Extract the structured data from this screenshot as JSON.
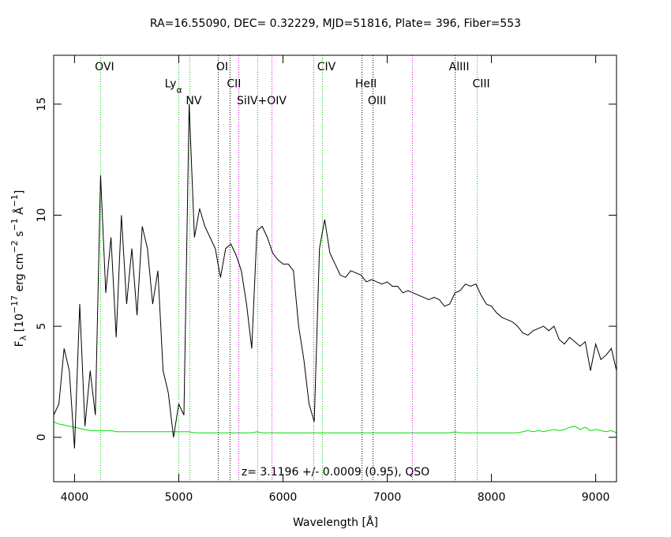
{
  "chart_data": {
    "type": "line",
    "title": "RA=16.55090, DEC= 0.32229, MJD=51816, Plate= 396, Fiber=553",
    "annotation": "z= 3.1196 +/- 0.0009 (0.95), QSO",
    "xlabel": "Wavelength [Å]",
    "ylabel_parts": [
      "F",
      "λ",
      " [10",
      "−17",
      " erg cm",
      "−2",
      " s",
      "−1",
      " Å",
      "−1",
      "]"
    ],
    "xlim": [
      3800,
      9200
    ],
    "ylim": [
      -2,
      17.2
    ],
    "xticks": [
      4000,
      5000,
      6000,
      7000,
      8000,
      9000
    ],
    "yticks": [
      0,
      5,
      10,
      15
    ],
    "x": [
      3800,
      3850,
      3900,
      3950,
      4000,
      4050,
      4100,
      4150,
      4200,
      4250,
      4300,
      4350,
      4400,
      4450,
      4500,
      4550,
      4600,
      4650,
      4700,
      4750,
      4800,
      4850,
      4900,
      4950,
      5000,
      5050,
      5100,
      5150,
      5200,
      5250,
      5300,
      5350,
      5400,
      5450,
      5500,
      5550,
      5600,
      5650,
      5700,
      5750,
      5800,
      5850,
      5900,
      5950,
      6000,
      6050,
      6100,
      6150,
      6200,
      6250,
      6300,
      6350,
      6400,
      6450,
      6500,
      6550,
      6600,
      6650,
      6700,
      6750,
      6800,
      6850,
      6900,
      6950,
      7000,
      7050,
      7100,
      7150,
      7200,
      7250,
      7300,
      7350,
      7400,
      7450,
      7500,
      7550,
      7600,
      7650,
      7700,
      7750,
      7800,
      7850,
      7900,
      7950,
      8000,
      8050,
      8100,
      8150,
      8200,
      8250,
      8300,
      8350,
      8400,
      8450,
      8500,
      8550,
      8600,
      8650,
      8700,
      8750,
      8800,
      8850,
      8900,
      8950,
      9000,
      9050,
      9100,
      9150,
      9200
    ],
    "series": [
      {
        "name": "flux",
        "color": "#000000",
        "values": [
          1.0,
          1.5,
          4,
          3,
          -0.5,
          6,
          0.5,
          3,
          1,
          11.8,
          6.5,
          9,
          4.5,
          10,
          6,
          8.5,
          5.5,
          9.5,
          8.5,
          6,
          7.5,
          3,
          2,
          0,
          1.5,
          1,
          15,
          9,
          10.3,
          9.5,
          9,
          8.5,
          7.2,
          8.5,
          8.7,
          8.2,
          7.5,
          6,
          4,
          9.3,
          9.5,
          9,
          8.3,
          8,
          7.8,
          7.8,
          7.5,
          5,
          3.5,
          1.5,
          0.7,
          8.5,
          9.8,
          8.3,
          7.8,
          7.3,
          7.2,
          7.5,
          7.4,
          7.3,
          7,
          7.1,
          7,
          6.9,
          7,
          6.8,
          6.8,
          6.5,
          6.6,
          6.5,
          6.4,
          6.3,
          6.2,
          6.3,
          6.2,
          5.9,
          6,
          6.5,
          6.6,
          6.9,
          6.8,
          6.9,
          6.4,
          6,
          5.9,
          5.6,
          5.4,
          5.3,
          5.2,
          5,
          4.7,
          4.6,
          4.8,
          4.9,
          5,
          4.8,
          5,
          4.4,
          4.2,
          4.5,
          4.3,
          4.1,
          4.3,
          3,
          4.2,
          3.5,
          3.7,
          4,
          3
        ]
      },
      {
        "name": "error",
        "color": "#00e000",
        "values": [
          0.7,
          0.6,
          0.55,
          0.5,
          0.45,
          0.4,
          0.35,
          0.3,
          0.3,
          0.3,
          0.3,
          0.3,
          0.25,
          0.25,
          0.25,
          0.25,
          0.25,
          0.25,
          0.25,
          0.25,
          0.25,
          0.25,
          0.25,
          0.25,
          0.25,
          0.25,
          0.25,
          0.2,
          0.2,
          0.2,
          0.2,
          0.2,
          0.2,
          0.2,
          0.2,
          0.2,
          0.2,
          0.2,
          0.2,
          0.25,
          0.2,
          0.2,
          0.2,
          0.2,
          0.2,
          0.2,
          0.2,
          0.2,
          0.2,
          0.2,
          0.2,
          0.2,
          0.2,
          0.2,
          0.2,
          0.2,
          0.2,
          0.2,
          0.2,
          0.2,
          0.2,
          0.2,
          0.2,
          0.2,
          0.2,
          0.2,
          0.2,
          0.2,
          0.2,
          0.2,
          0.2,
          0.2,
          0.2,
          0.2,
          0.2,
          0.2,
          0.2,
          0.25,
          0.2,
          0.2,
          0.2,
          0.2,
          0.2,
          0.2,
          0.2,
          0.2,
          0.2,
          0.2,
          0.2,
          0.2,
          0.25,
          0.3,
          0.25,
          0.3,
          0.25,
          0.3,
          0.35,
          0.3,
          0.35,
          0.45,
          0.5,
          0.35,
          0.45,
          0.3,
          0.35,
          0.3,
          0.25,
          0.3,
          0.2
        ]
      }
    ],
    "lines": [
      {
        "label": "OVI",
        "wavelength": 4250,
        "color": "#00cc00"
      },
      {
        "label": "Ly",
        "subscript": "α",
        "wavelength": 5000,
        "color": "#00cc00"
      },
      {
        "label": "NV",
        "wavelength": 5106,
        "color": "#00cc00"
      },
      {
        "label": "OI",
        "wavelength": 5379,
        "color": "#000000"
      },
      {
        "label": "CII",
        "wavelength": 5492,
        "color": "#000000"
      },
      {
        "label": "SiIV+OIV",
        "wavelength": 5758,
        "color": "#00cc00"
      },
      {
        "label": "CIV",
        "wavelength": 6379,
        "color": "#00cc00"
      },
      {
        "label": "HeII",
        "wavelength": 6758,
        "color": "#000000"
      },
      {
        "label": "OIII",
        "wavelength": 6864,
        "color": "#000000"
      },
      {
        "label": "AlIII",
        "wavelength": 7652,
        "color": "#000000"
      },
      {
        "label": "CIII",
        "wavelength": 7864,
        "color": "#00cc00"
      }
    ],
    "sky_lines": {
      "color": "#dd00dd",
      "wavelengths": [
        5576,
        5894,
        6295,
        7242
      ]
    }
  }
}
